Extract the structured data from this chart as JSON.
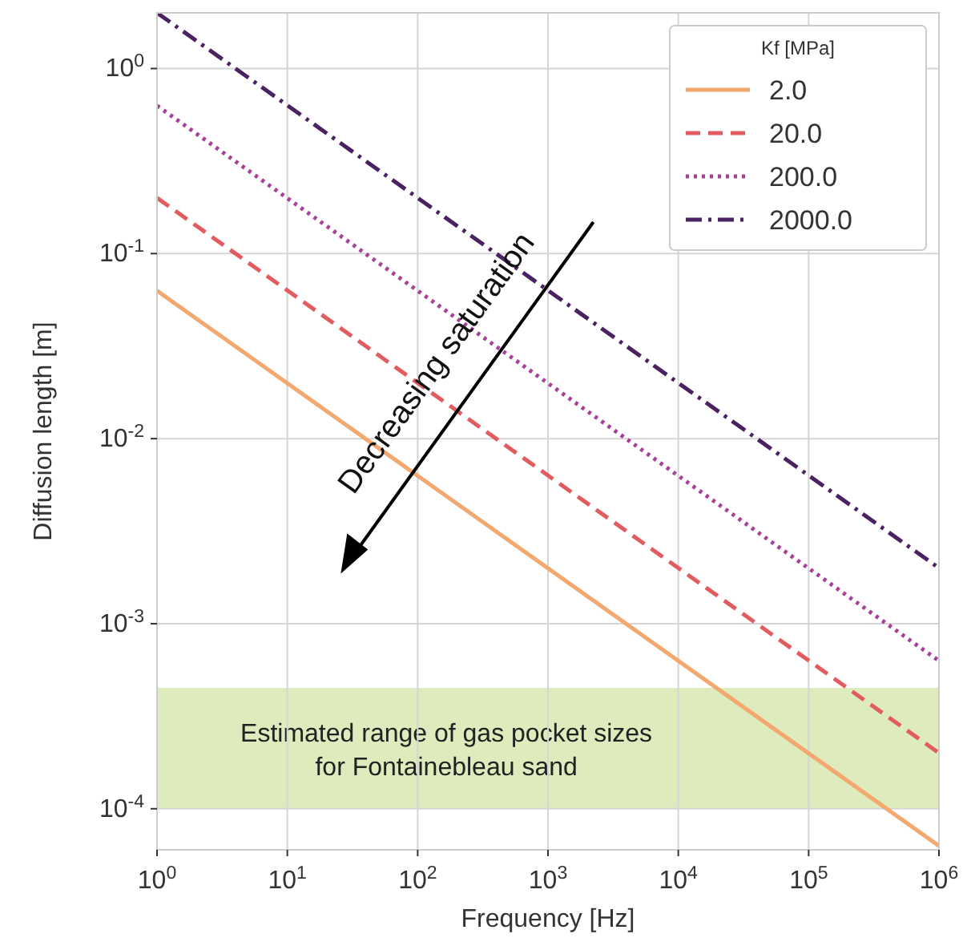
{
  "chart_data": {
    "type": "line",
    "xlabel": "Frequency [Hz]",
    "ylabel": "Diffusion length [m]",
    "legend_title": "Kf [MPa]",
    "log": "xy",
    "grid": true,
    "legend": "top right",
    "xlim": [
      1,
      1000000
    ],
    "ylim": [
      6e-05,
      2
    ],
    "xticks": [
      {
        "value": 1,
        "label": "10$^{0}$"
      },
      {
        "value": 10,
        "label": "10$^{1}$"
      },
      {
        "value": 100,
        "label": "10$^{2}$"
      },
      {
        "value": 1000,
        "label": "10$^{3}$"
      },
      {
        "value": 10000,
        "label": "10$^{4}$"
      },
      {
        "value": 100000,
        "label": "10$^{5}$"
      },
      {
        "value": 1000000,
        "label": "10$^{6}$"
      }
    ],
    "yticks": [
      {
        "value": 0.0001,
        "label": "10$^{-4}$"
      },
      {
        "value": 0.001,
        "label": "10$^{-3}$"
      },
      {
        "value": 0.01,
        "label": "10$^{-2}$"
      },
      {
        "value": 0.1,
        "label": "10$^{-1}$"
      },
      {
        "value": 1,
        "label": "10$^{0}$"
      }
    ],
    "x": [
      1,
      1000000
    ],
    "series": [
      {
        "name": "2.0",
        "color": "#f2a86e",
        "line_style": "solid",
        "values": [
          0.063,
          6.3e-05
        ]
      },
      {
        "name": "20.0",
        "color": "#e25b5e",
        "line_style": "dashed",
        "values": [
          0.2,
          0.0002
        ]
      },
      {
        "name": "200.0",
        "color": "#a8409a",
        "line_style": "dotted",
        "values": [
          0.63,
          0.00063
        ]
      },
      {
        "name": "2000.0",
        "color": "#4a2262",
        "line_style": "dashdot",
        "values": [
          2,
          0.002
        ]
      }
    ],
    "bands": [
      {
        "axis": "y",
        "from": 0.0001,
        "to": 0.00045,
        "label": "Estimated range of gas pocket sizes\nfor Fontainebleau sand",
        "color": "#d8e8b0"
      }
    ],
    "annotations": [
      "Decreasing saturation"
    ]
  }
}
